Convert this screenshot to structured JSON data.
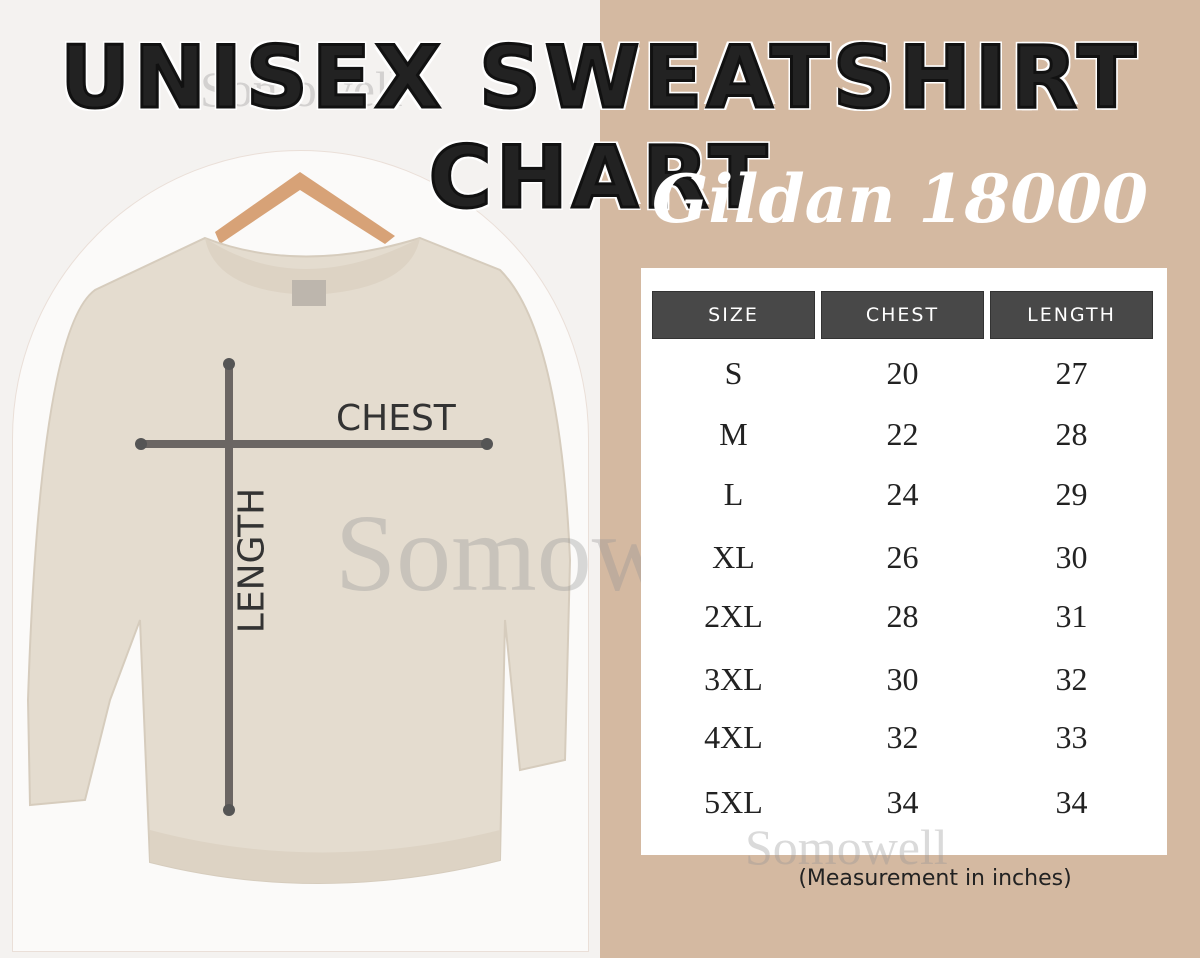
{
  "title": "UNISEX SWEATSHIRT CHART",
  "subtitle": "Gildan 18000",
  "diagram": {
    "chest_label": "CHEST",
    "length_label": "LENGTH"
  },
  "table": {
    "headers": [
      "SIZE",
      "CHEST",
      "LENGTH"
    ],
    "rows": [
      [
        "S",
        "20",
        "27"
      ],
      [
        "M",
        "22",
        "28"
      ],
      [
        "L",
        "24",
        "29"
      ],
      [
        "XL",
        "26",
        "30"
      ],
      [
        "2XL",
        "28",
        "31"
      ],
      [
        "3XL",
        "30",
        "32"
      ],
      [
        "4XL",
        "32",
        "33"
      ],
      [
        "5XL",
        "34",
        "34"
      ]
    ]
  },
  "note": "(Measurement in inches)",
  "watermark": "Somowell",
  "colors": {
    "panel": "#d4b9a1",
    "header": "#484848",
    "garment": "#e4dccf",
    "measure_line": "#6b6663"
  }
}
